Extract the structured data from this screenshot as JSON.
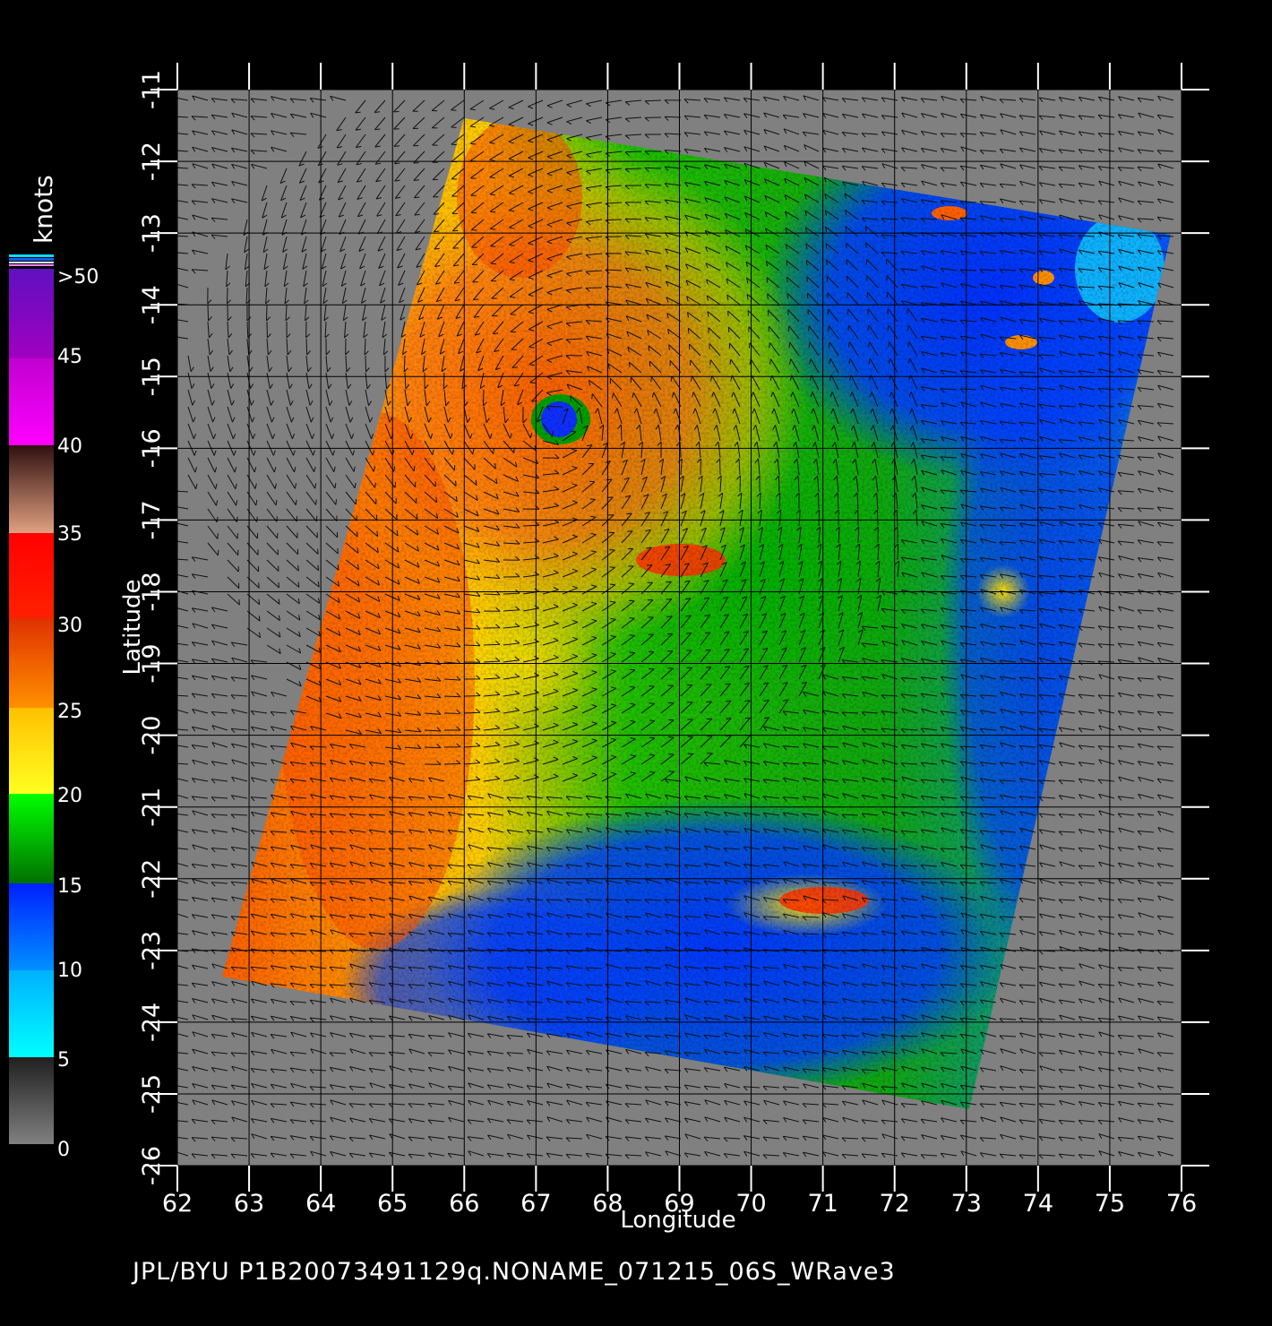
{
  "footer": {
    "product_id": "JPL/BYU  P1B20073491129q.NONAME_071215_06S_WRave3"
  },
  "axes": {
    "x_label": "Longitude",
    "y_label": "Latitude",
    "x_ticks": [
      "62",
      "63",
      "64",
      "65",
      "66",
      "67",
      "68",
      "69",
      "70",
      "71",
      "72",
      "73",
      "74",
      "75",
      "76"
    ],
    "y_ticks": [
      "-11",
      "-12",
      "-13",
      "-14",
      "-15",
      "-16",
      "-17",
      "-18",
      "-19",
      "-20",
      "-21",
      "-22",
      "-23",
      "-24",
      "-25",
      "-26"
    ]
  },
  "colorbar": {
    "unit": "knots",
    "labels": [
      ">50",
      "45",
      "40",
      "35",
      "30",
      "25",
      "20",
      "15",
      "10",
      "5",
      "0"
    ],
    "stops": [
      {
        "color": "#888888",
        "name": "0-5"
      },
      {
        "color": "#00ffff",
        "name": "5-10"
      },
      {
        "color": "#0040ff",
        "name": "10-15"
      },
      {
        "color": "#00cc00",
        "name": "15-20"
      },
      {
        "color": "#ffdd00",
        "name": "20-25"
      },
      {
        "color": "#ff7000",
        "name": "25-30"
      },
      {
        "color": "#ff1a00",
        "name": "30-35"
      },
      {
        "color": "#c08060",
        "name": "35-40"
      },
      {
        "color": "#ff00ff",
        "name": "40-45"
      },
      {
        "color": "#7a10c0",
        "name": "45-50"
      }
    ]
  },
  "map": {
    "lon_range": [
      62,
      76
    ],
    "lat_range": [
      -26,
      -11
    ],
    "background_color": "#808080",
    "storm_eye_lonlat": [
      67.3,
      -15.6
    ]
  }
}
